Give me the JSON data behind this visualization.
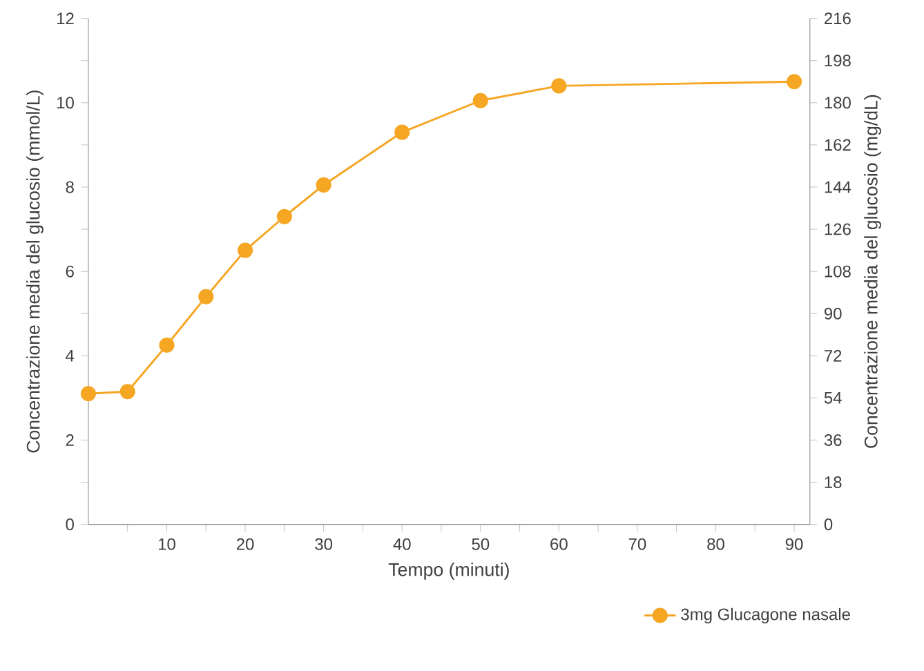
{
  "chart_data": {
    "type": "line",
    "xlabel": "Tempo (minuti)",
    "ylabel": "Concentrazione media del glucosio (mmol/L)",
    "y2label": "Concentrazione media del glucosio (mg/dL)",
    "x": [
      0,
      5,
      10,
      15,
      20,
      25,
      30,
      40,
      50,
      60,
      90
    ],
    "series": [
      {
        "name": "3mg Glucagone nasale",
        "color": "#f5a623",
        "values": [
          3.1,
          3.15,
          4.25,
          5.4,
          6.5,
          7.3,
          8.05,
          9.3,
          10.05,
          10.4,
          10.5
        ]
      }
    ],
    "xlim": [
      0,
      92
    ],
    "xticks": [
      {
        "value": 5,
        "label": null
      },
      10,
      {
        "value": 15,
        "label": null
      },
      20,
      {
        "value": 25,
        "label": null
      },
      30,
      {
        "value": 35,
        "label": null
      },
      40,
      {
        "value": 45,
        "label": null
      },
      50,
      {
        "value": 55,
        "label": null
      },
      60,
      {
        "value": 65,
        "label": null
      },
      70,
      {
        "value": 75,
        "label": null
      },
      80,
      {
        "value": 85,
        "label": null
      },
      90
    ],
    "ylim": [
      0,
      12
    ],
    "yticks": [
      0,
      {
        "value": 1,
        "label": null
      },
      2,
      {
        "value": 3,
        "label": null
      },
      4,
      {
        "value": 5,
        "label": null
      },
      6,
      {
        "value": 7,
        "label": null
      },
      8,
      {
        "value": 9,
        "label": null
      },
      10,
      {
        "value": 11,
        "label": null
      },
      12
    ],
    "y2lim": [
      0,
      216
    ],
    "y2ticks": [
      0,
      18,
      36,
      54,
      72,
      90,
      108,
      126,
      144,
      162,
      180,
      198,
      216
    ],
    "legend": "bottom right",
    "marker": "circle",
    "line_style": "solid",
    "grid": false
  }
}
